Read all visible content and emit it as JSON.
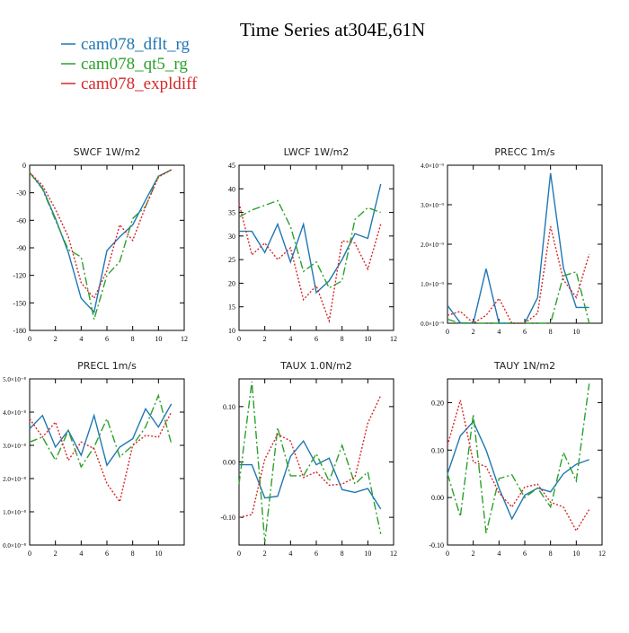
{
  "page": {
    "title": "Time Series at304E,61N"
  },
  "legend": [
    {
      "name": "cam078_dflt_rg",
      "color": "#1f77b4",
      "dash": ""
    },
    {
      "name": "cam078_qt5_rg",
      "color": "#2ca02c",
      "dash": "9 3 2 3"
    },
    {
      "name": "cam078_expldiff",
      "color": "#d62728",
      "dash": "2 2"
    }
  ],
  "chart_data": [
    {
      "type": "line",
      "title": "SWCF   1W/m2",
      "x": [
        0,
        1,
        2,
        3,
        4,
        5,
        6,
        7,
        8,
        9,
        10,
        11
      ],
      "ylim": [
        -180,
        0
      ],
      "yticks": [
        0,
        -30,
        -60,
        -90,
        -120,
        -150,
        -180
      ],
      "ytick_labels": [
        "0",
        "-30",
        "-60",
        "-90",
        "-120",
        "-150",
        "-180"
      ],
      "xticks": [
        0,
        2,
        4,
        6,
        8,
        10,
        12
      ],
      "series": [
        {
          "name": "cam078_dflt_rg",
          "values": [
            -8,
            -25,
            -58,
            -95,
            -145,
            -160,
            -93,
            -78,
            -65,
            -38,
            -12,
            -5
          ]
        },
        {
          "name": "cam078_qt5_rg",
          "values": [
            -8,
            -26,
            -60,
            -92,
            -100,
            -168,
            -120,
            -105,
            -58,
            -45,
            -12,
            -5
          ]
        },
        {
          "name": "cam078_expldiff",
          "values": [
            -8,
            -22,
            -48,
            -78,
            -128,
            -145,
            -115,
            -65,
            -82,
            -45,
            -13,
            -5
          ]
        }
      ]
    },
    {
      "type": "line",
      "title": "LWCF   1W/m2",
      "x": [
        0,
        1,
        2,
        3,
        4,
        5,
        6,
        7,
        8,
        9,
        10,
        11
      ],
      "ylim": [
        10,
        45
      ],
      "yticks": [
        10,
        15,
        20,
        25,
        30,
        35,
        40,
        45
      ],
      "ytick_labels": [
        "10",
        "15",
        "20",
        "25",
        "30",
        "35",
        "40",
        "45"
      ],
      "xticks": [
        0,
        2,
        4,
        6,
        8,
        10,
        12
      ],
      "series": [
        {
          "name": "cam078_dflt_rg",
          "values": [
            31,
            31,
            26.5,
            32.5,
            24.5,
            32.5,
            18,
            20.5,
            25,
            30.5,
            29.5,
            41
          ]
        },
        {
          "name": "cam078_qt5_rg",
          "values": [
            34,
            35.5,
            36.5,
            37.5,
            32,
            22.5,
            24.5,
            19,
            20.5,
            33.5,
            36,
            35
          ]
        },
        {
          "name": "cam078_expldiff",
          "values": [
            37,
            26,
            28.5,
            25,
            27.5,
            16.5,
            19.5,
            12,
            29,
            28.5,
            23,
            32.5
          ]
        }
      ]
    },
    {
      "type": "line",
      "title": "PRECC   1m/s",
      "x": [
        0,
        1,
        2,
        3,
        4,
        5,
        6,
        7,
        8,
        9,
        10,
        11
      ],
      "ylim": [
        0,
        4e-09
      ],
      "yticks": [
        0,
        1e-09,
        2e-09,
        3e-09,
        4e-09
      ],
      "ytick_labels": [
        "0.0×10⁻⁹",
        "1.0×10⁻⁹",
        "2.0×10⁻⁹",
        "3.0×10⁻⁹",
        "4.0×10⁻⁹"
      ],
      "xticks": [
        0,
        2,
        4,
        6,
        8,
        10
      ],
      "series": [
        {
          "name": "cam078_dflt_rg",
          "values": [
            4.5e-10,
            1e-11,
            0,
            1.38e-09,
            0,
            0,
            0,
            6.5e-10,
            3.8e-09,
            1.4e-09,
            4e-10,
            4e-10
          ]
        },
        {
          "name": "cam078_qt5_rg",
          "values": [
            1e-10,
            0,
            0,
            0,
            0,
            0,
            0,
            0,
            0,
            1.2e-09,
            1.3e-09,
            0
          ]
        },
        {
          "name": "cam078_expldiff",
          "values": [
            2e-10,
            3e-10,
            0,
            2e-10,
            6.3e-10,
            0,
            0,
            2.5e-10,
            2.45e-09,
            1.1e-09,
            6.5e-10,
            1.75e-09
          ]
        }
      ]
    },
    {
      "type": "line",
      "title": "PRECL   1m/s",
      "x": [
        0,
        1,
        2,
        3,
        4,
        5,
        6,
        7,
        8,
        9,
        10,
        11
      ],
      "ylim": [
        0,
        5e-08
      ],
      "yticks": [
        0,
        1e-08,
        2e-08,
        3e-08,
        4e-08,
        5e-08
      ],
      "ytick_labels": [
        "0.0×10⁻⁸",
        "1.0×10⁻⁸",
        "2.0×10⁻⁸",
        "3.0×10⁻⁸",
        "4.0×10⁻⁸",
        "5.0×10⁻⁸"
      ],
      "xticks": [
        0,
        2,
        4,
        6,
        8,
        10
      ],
      "series": [
        {
          "name": "cam078_dflt_rg",
          "values": [
            3.5e-08,
            3.9e-08,
            2.95e-08,
            3.45e-08,
            2.7e-08,
            3.9e-08,
            2.4e-08,
            2.95e-08,
            3.2e-08,
            4.1e-08,
            3.55e-08,
            4.25e-08
          ]
        },
        {
          "name": "cam078_qt5_rg",
          "values": [
            3.1e-08,
            3.25e-08,
            2.55e-08,
            3.45e-08,
            2.35e-08,
            2.95e-08,
            3.8e-08,
            2.65e-08,
            3e-08,
            3.55e-08,
            4.5e-08,
            3.05e-08
          ]
        },
        {
          "name": "cam078_expldiff",
          "values": [
            3.8e-08,
            3.25e-08,
            3.7e-08,
            2.55e-08,
            3.1e-08,
            2.9e-08,
            1.85e-08,
            1.3e-08,
            3e-08,
            3.3e-08,
            3.25e-08,
            4e-08
          ]
        }
      ]
    },
    {
      "type": "line",
      "title": "TAUX   1.0N/m2",
      "x": [
        0,
        1,
        2,
        3,
        4,
        5,
        6,
        7,
        8,
        9,
        10,
        11
      ],
      "ylim": [
        -0.15,
        0.15
      ],
      "yticks": [
        -0.1,
        0.0,
        0.1
      ],
      "ytick_labels": [
        "-0.10",
        "0.00",
        "0.10"
      ],
      "xticks": [
        0,
        2,
        4,
        6,
        8,
        10,
        12
      ],
      "series": [
        {
          "name": "cam078_dflt_rg",
          "values": [
            -0.005,
            -0.005,
            -0.065,
            -0.062,
            0.01,
            0.038,
            -0.005,
            0.007,
            -0.05,
            -0.055,
            -0.048,
            -0.085
          ]
        },
        {
          "name": "cam078_qt5_rg",
          "values": [
            -0.04,
            0.145,
            -0.145,
            0.062,
            -0.025,
            -0.025,
            0.015,
            -0.035,
            0.03,
            -0.04,
            -0.018,
            -0.13
          ]
        },
        {
          "name": "cam078_expldiff",
          "values": [
            -0.1,
            -0.095,
            0.005,
            0.05,
            0.038,
            -0.028,
            -0.018,
            -0.042,
            -0.04,
            -0.028,
            0.07,
            0.12
          ]
        }
      ]
    },
    {
      "type": "line",
      "title": "TAUY   1N/m2",
      "x": [
        0,
        1,
        2,
        3,
        4,
        5,
        6,
        7,
        8,
        9,
        10,
        11
      ],
      "ylim": [
        -0.1,
        0.25
      ],
      "yticks": [
        -0.1,
        0.0,
        0.1,
        0.2
      ],
      "ytick_labels": [
        "-0.10",
        "0.00",
        "0.10",
        "0.20"
      ],
      "xticks": [
        0,
        2,
        4,
        6,
        8,
        10,
        12
      ],
      "series": [
        {
          "name": "cam078_dflt_rg",
          "values": [
            0.05,
            0.13,
            0.16,
            0.1,
            0.02,
            -0.045,
            0.005,
            0.02,
            0.012,
            0.05,
            0.07,
            0.08
          ]
        },
        {
          "name": "cam078_qt5_rg",
          "values": [
            0.05,
            -0.04,
            0.175,
            -0.075,
            0.04,
            0.048,
            0.0,
            0.02,
            -0.02,
            0.095,
            0.035,
            0.24
          ]
        },
        {
          "name": "cam078_expldiff",
          "values": [
            0.11,
            0.205,
            0.075,
            0.065,
            0.01,
            -0.02,
            0.022,
            0.028,
            -0.01,
            -0.02,
            -0.07,
            -0.025
          ]
        }
      ]
    }
  ]
}
